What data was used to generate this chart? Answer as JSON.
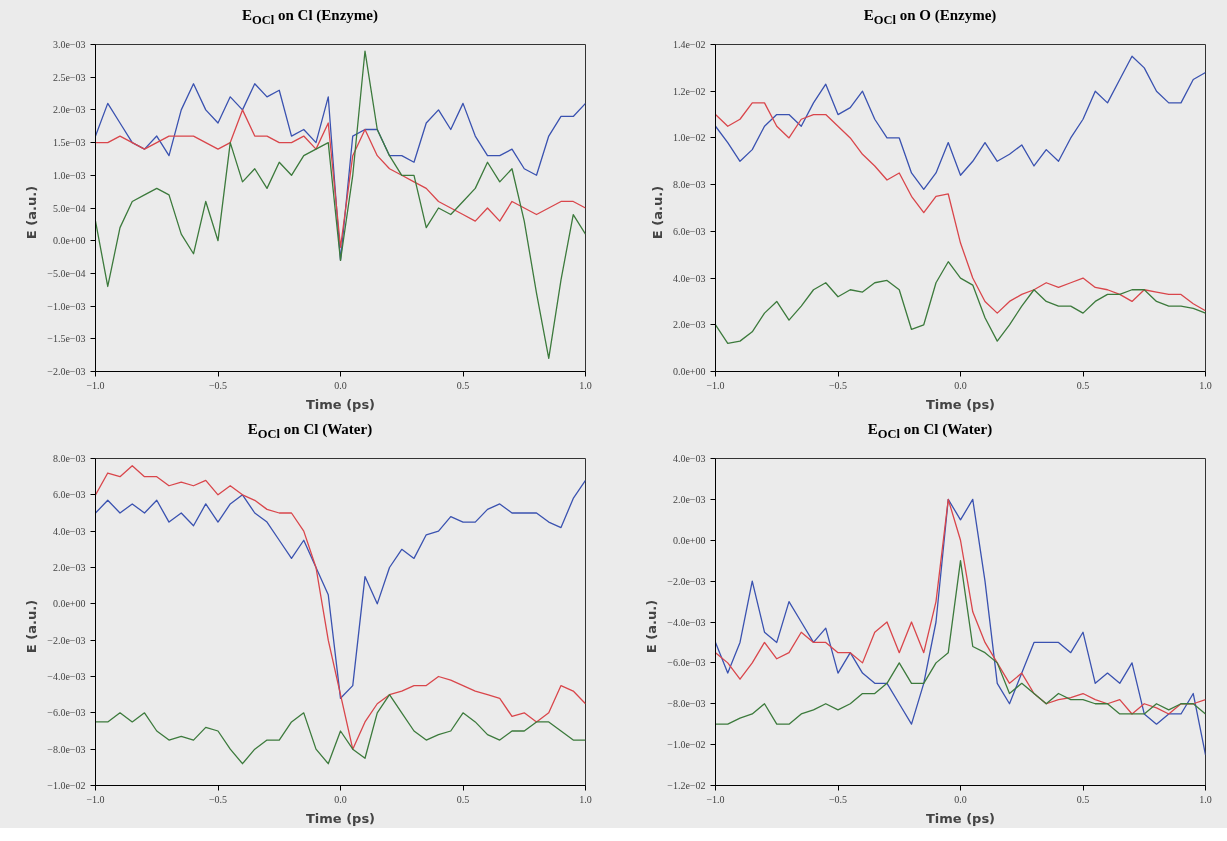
{
  "chart_data": [
    {
      "type": "line",
      "title": "E$_{OCl}$ on Cl (Enzyme)",
      "xlabel": "Time (ps)",
      "ylabel": "E   (a.u.)",
      "grid": false,
      "x": [
        -1.0,
        -0.95,
        -0.9,
        -0.85,
        -0.8,
        -0.75,
        -0.7,
        -0.65,
        -0.6,
        -0.55,
        -0.5,
        -0.45,
        -0.4,
        -0.35,
        -0.3,
        -0.25,
        -0.2,
        -0.15,
        -0.1,
        -0.05,
        0.0,
        0.05,
        0.1,
        0.15,
        0.2,
        0.25,
        0.3,
        0.35,
        0.4,
        0.45,
        0.5,
        0.55,
        0.6,
        0.65,
        0.7,
        0.75,
        0.8,
        0.85,
        0.9,
        0.95,
        1.0
      ],
      "xlim": [
        -1.0,
        1.0
      ],
      "xticks": [
        {
          "value": -1.0,
          "label": "−1.0"
        },
        {
          "value": -0.5,
          "label": "−0.5"
        },
        {
          "value": 0,
          "label": "0.0"
        },
        {
          "value": 0.5,
          "label": "0.5"
        },
        {
          "value": 1.0,
          "label": "1.0"
        }
      ],
      "ylim": [
        -0.002,
        0.003
      ],
      "yticks": [
        {
          "value": -0.002,
          "label": "−2.0e−03"
        },
        {
          "value": -0.0015,
          "label": "−1.5e−03"
        },
        {
          "value": -0.001,
          "label": "−1.0e−03"
        },
        {
          "value": -0.0005,
          "label": "−5.0e−04"
        },
        {
          "value": 0,
          "label": "0.0e+00"
        },
        {
          "value": 0.0005,
          "label": "5.0e−04"
        },
        {
          "value": 0.001,
          "label": "1.0e−03"
        },
        {
          "value": 0.0015,
          "label": "1.5e−03"
        },
        {
          "value": 0.002,
          "label": "2.0e−03"
        },
        {
          "value": 0.0025,
          "label": "2.5e−03"
        },
        {
          "value": 0.003,
          "label": "3.0e−03"
        }
      ],
      "series": [
        {
          "color": "#3a52b0",
          "values": [
            0.0016,
            0.0021,
            0.0018,
            0.0015,
            0.0014,
            0.0016,
            0.0013,
            0.002,
            0.0024,
            0.002,
            0.0018,
            0.0022,
            0.002,
            0.0024,
            0.0022,
            0.0023,
            0.0016,
            0.0017,
            0.0015,
            0.0022,
            -0.0003,
            0.0016,
            0.0017,
            0.0017,
            0.0013,
            0.0013,
            0.0012,
            0.0018,
            0.002,
            0.0017,
            0.0021,
            0.0016,
            0.0013,
            0.0013,
            0.0014,
            0.0011,
            0.001,
            0.0016,
            0.0019,
            0.0019,
            0.0021
          ]
        },
        {
          "color": "#d9464b",
          "values": [
            0.0015,
            0.0015,
            0.0016,
            0.0015,
            0.0014,
            0.0015,
            0.0016,
            0.0016,
            0.0016,
            0.0015,
            0.0014,
            0.0015,
            0.002,
            0.0016,
            0.0016,
            0.0015,
            0.0015,
            0.0016,
            0.0014,
            0.0018,
            -0.0001,
            0.0013,
            0.0017,
            0.0013,
            0.0011,
            0.001,
            0.0009,
            0.0008,
            0.0006,
            0.0005,
            0.0004,
            0.0003,
            0.0005,
            0.0003,
            0.0006,
            0.0005,
            0.0004,
            0.0005,
            0.0006,
            0.0006,
            0.0005
          ]
        },
        {
          "color": "#3c7a3c",
          "values": [
            0.0003,
            -0.0007,
            0.0002,
            0.0006,
            0.0007,
            0.0008,
            0.0007,
            0.0001,
            -0.0002,
            0.0006,
            0.0,
            0.0015,
            0.0009,
            0.0011,
            0.0008,
            0.0012,
            0.001,
            0.0013,
            0.0014,
            0.0015,
            -0.0003,
            0.001,
            0.0029,
            0.0017,
            0.0013,
            0.001,
            0.001,
            0.0002,
            0.0005,
            0.0004,
            0.0006,
            0.0008,
            0.0012,
            0.0009,
            0.0011,
            0.0003,
            -0.0008,
            -0.0018,
            -0.0006,
            0.0004,
            0.0001
          ]
        }
      ]
    },
    {
      "type": "line",
      "title": "E$_{OCl}$ on O (Enzyme)",
      "xlabel": "Time (ps)",
      "ylabel": "E   (a.u.)",
      "grid": false,
      "x": [
        -1.0,
        -0.95,
        -0.9,
        -0.85,
        -0.8,
        -0.75,
        -0.7,
        -0.65,
        -0.6,
        -0.55,
        -0.5,
        -0.45,
        -0.4,
        -0.35,
        -0.3,
        -0.25,
        -0.2,
        -0.15,
        -0.1,
        -0.05,
        0.0,
        0.05,
        0.1,
        0.15,
        0.2,
        0.25,
        0.3,
        0.35,
        0.4,
        0.45,
        0.5,
        0.55,
        0.6,
        0.65,
        0.7,
        0.75,
        0.8,
        0.85,
        0.9,
        0.95,
        1.0
      ],
      "xlim": [
        -1.0,
        1.0
      ],
      "xticks": [
        {
          "value": -1.0,
          "label": "−1.0"
        },
        {
          "value": -0.5,
          "label": "−0.5"
        },
        {
          "value": 0,
          "label": "0.0"
        },
        {
          "value": 0.5,
          "label": "0.5"
        },
        {
          "value": 1.0,
          "label": "1.0"
        }
      ],
      "ylim": [
        0,
        0.014
      ],
      "yticks": [
        {
          "value": 0,
          "label": "0.0e+00"
        },
        {
          "value": 0.002,
          "label": "2.0e−03"
        },
        {
          "value": 0.004,
          "label": "4.0e−03"
        },
        {
          "value": 0.006,
          "label": "6.0e−03"
        },
        {
          "value": 0.008,
          "label": "8.0e−03"
        },
        {
          "value": 0.01,
          "label": "1.0e−02"
        },
        {
          "value": 0.012,
          "label": "1.2e−02"
        },
        {
          "value": 0.014,
          "label": "1.4e−02"
        }
      ],
      "series": [
        {
          "color": "#3a52b0",
          "values": [
            0.0105,
            0.0098,
            0.009,
            0.0095,
            0.0105,
            0.011,
            0.011,
            0.0105,
            0.0115,
            0.0123,
            0.011,
            0.0113,
            0.012,
            0.0108,
            0.01,
            0.01,
            0.0085,
            0.0078,
            0.0085,
            0.0098,
            0.0084,
            0.009,
            0.0098,
            0.009,
            0.0093,
            0.0097,
            0.0088,
            0.0095,
            0.009,
            0.01,
            0.0108,
            0.012,
            0.0115,
            0.0125,
            0.0135,
            0.013,
            0.012,
            0.0115,
            0.0115,
            0.0125,
            0.0128
          ]
        },
        {
          "color": "#d9464b",
          "values": [
            0.011,
            0.0105,
            0.0108,
            0.0115,
            0.0115,
            0.0105,
            0.01,
            0.0108,
            0.011,
            0.011,
            0.0105,
            0.01,
            0.0093,
            0.0088,
            0.0082,
            0.0085,
            0.0075,
            0.0068,
            0.0075,
            0.0076,
            0.0055,
            0.004,
            0.003,
            0.0025,
            0.003,
            0.0033,
            0.0035,
            0.0038,
            0.0036,
            0.0038,
            0.004,
            0.0036,
            0.0035,
            0.0033,
            0.003,
            0.0035,
            0.0034,
            0.0033,
            0.0033,
            0.0029,
            0.0026
          ]
        },
        {
          "color": "#3c7a3c",
          "values": [
            0.002,
            0.0012,
            0.0013,
            0.0017,
            0.0025,
            0.003,
            0.0022,
            0.0028,
            0.0035,
            0.0038,
            0.0032,
            0.0035,
            0.0034,
            0.0038,
            0.0039,
            0.0035,
            0.0018,
            0.002,
            0.0038,
            0.0047,
            0.004,
            0.0037,
            0.0023,
            0.0013,
            0.002,
            0.0028,
            0.0035,
            0.003,
            0.0028,
            0.0028,
            0.0025,
            0.003,
            0.0033,
            0.0033,
            0.0035,
            0.0035,
            0.003,
            0.0028,
            0.0028,
            0.0027,
            0.0025
          ]
        }
      ]
    },
    {
      "type": "line",
      "title": "E$_{OCl}$ on Cl (Water)",
      "xlabel": "Time (ps)",
      "ylabel": "E   (a.u.)",
      "grid": false,
      "x": [
        -1.0,
        -0.95,
        -0.9,
        -0.85,
        -0.8,
        -0.75,
        -0.7,
        -0.65,
        -0.6,
        -0.55,
        -0.5,
        -0.45,
        -0.4,
        -0.35,
        -0.3,
        -0.25,
        -0.2,
        -0.15,
        -0.1,
        -0.05,
        0.0,
        0.05,
        0.1,
        0.15,
        0.2,
        0.25,
        0.3,
        0.35,
        0.4,
        0.45,
        0.5,
        0.55,
        0.6,
        0.65,
        0.7,
        0.75,
        0.8,
        0.85,
        0.9,
        0.95,
        1.0
      ],
      "xlim": [
        -1.0,
        1.0
      ],
      "xticks": [
        {
          "value": -1.0,
          "label": "−1.0"
        },
        {
          "value": -0.5,
          "label": "−0.5"
        },
        {
          "value": 0,
          "label": "0.0"
        },
        {
          "value": 0.5,
          "label": "0.5"
        },
        {
          "value": 1.0,
          "label": "1.0"
        }
      ],
      "ylim": [
        -0.01,
        0.008
      ],
      "yticks": [
        {
          "value": -0.01,
          "label": "−1.0e−02"
        },
        {
          "value": -0.008,
          "label": "−8.0e−03"
        },
        {
          "value": -0.006,
          "label": "−6.0e−03"
        },
        {
          "value": -0.004,
          "label": "−4.0e−03"
        },
        {
          "value": -0.002,
          "label": "−2.0e−03"
        },
        {
          "value": 0,
          "label": "0.0e+00"
        },
        {
          "value": 0.002,
          "label": "2.0e−03"
        },
        {
          "value": 0.004,
          "label": "4.0e−03"
        },
        {
          "value": 0.006,
          "label": "6.0e−03"
        },
        {
          "value": 0.008,
          "label": "8.0e−03"
        }
      ],
      "series": [
        {
          "color": "#3a52b0",
          "values": [
            0.005,
            0.0057,
            0.005,
            0.0055,
            0.005,
            0.0057,
            0.0045,
            0.005,
            0.0043,
            0.0055,
            0.0045,
            0.0055,
            0.006,
            0.005,
            0.0045,
            0.0035,
            0.0025,
            0.0035,
            0.002,
            0.0005,
            -0.0052,
            -0.0045,
            0.0015,
            0.0,
            0.002,
            0.003,
            0.0025,
            0.0038,
            0.004,
            0.0048,
            0.0045,
            0.0045,
            0.0052,
            0.0055,
            0.005,
            0.005,
            0.005,
            0.0045,
            0.0042,
            0.0058,
            0.0068
          ]
        },
        {
          "color": "#d9464b",
          "values": [
            0.006,
            0.0072,
            0.007,
            0.0076,
            0.007,
            0.007,
            0.0065,
            0.0067,
            0.0065,
            0.0068,
            0.006,
            0.0065,
            0.006,
            0.0057,
            0.0052,
            0.005,
            0.005,
            0.004,
            0.002,
            -0.002,
            -0.005,
            -0.008,
            -0.0065,
            -0.0055,
            -0.005,
            -0.0048,
            -0.0045,
            -0.0045,
            -0.004,
            -0.0042,
            -0.0045,
            -0.0048,
            -0.005,
            -0.0052,
            -0.0062,
            -0.006,
            -0.0065,
            -0.006,
            -0.0045,
            -0.0048,
            -0.0055
          ]
        },
        {
          "color": "#3c7a3c",
          "values": [
            -0.0065,
            -0.0065,
            -0.006,
            -0.0065,
            -0.006,
            -0.007,
            -0.0075,
            -0.0073,
            -0.0075,
            -0.0068,
            -0.007,
            -0.008,
            -0.0088,
            -0.008,
            -0.0075,
            -0.0075,
            -0.0065,
            -0.006,
            -0.008,
            -0.0088,
            -0.007,
            -0.008,
            -0.0085,
            -0.006,
            -0.005,
            -0.006,
            -0.007,
            -0.0075,
            -0.0072,
            -0.007,
            -0.006,
            -0.0065,
            -0.0072,
            -0.0075,
            -0.007,
            -0.007,
            -0.0065,
            -0.0065,
            -0.007,
            -0.0075,
            -0.0075
          ]
        }
      ]
    },
    {
      "type": "line",
      "title": "E$_{OCl}$ on Cl (Water)",
      "xlabel": "Time (ps)",
      "ylabel": "E   (a.u.)",
      "grid": false,
      "x": [
        -1.0,
        -0.95,
        -0.9,
        -0.85,
        -0.8,
        -0.75,
        -0.7,
        -0.65,
        -0.6,
        -0.55,
        -0.5,
        -0.45,
        -0.4,
        -0.35,
        -0.3,
        -0.25,
        -0.2,
        -0.15,
        -0.1,
        -0.05,
        0.0,
        0.05,
        0.1,
        0.15,
        0.2,
        0.25,
        0.3,
        0.35,
        0.4,
        0.45,
        0.5,
        0.55,
        0.6,
        0.65,
        0.7,
        0.75,
        0.8,
        0.85,
        0.9,
        0.95,
        1.0
      ],
      "xlim": [
        -1.0,
        1.0
      ],
      "xticks": [
        {
          "value": -1.0,
          "label": "−1.0"
        },
        {
          "value": -0.5,
          "label": "−0.5"
        },
        {
          "value": 0,
          "label": "0.0"
        },
        {
          "value": 0.5,
          "label": "0.5"
        },
        {
          "value": 1.0,
          "label": "1.0"
        }
      ],
      "ylim": [
        -0.012,
        0.004
      ],
      "yticks": [
        {
          "value": -0.012,
          "label": "−1.2e−02"
        },
        {
          "value": -0.01,
          "label": "−1.0e−02"
        },
        {
          "value": -0.008,
          "label": "−8.0e−03"
        },
        {
          "value": -0.006,
          "label": "−6.0e−03"
        },
        {
          "value": -0.004,
          "label": "−4.0e−03"
        },
        {
          "value": -0.002,
          "label": "−2.0e−03"
        },
        {
          "value": 0,
          "label": "0.0e+00"
        },
        {
          "value": 0.002,
          "label": "2.0e−03"
        },
        {
          "value": 0.004,
          "label": "4.0e−03"
        }
      ],
      "series": [
        {
          "color": "#3a52b0",
          "values": [
            -0.005,
            -0.0065,
            -0.005,
            -0.002,
            -0.0045,
            -0.005,
            -0.003,
            -0.004,
            -0.005,
            -0.0043,
            -0.0065,
            -0.0055,
            -0.0065,
            -0.007,
            -0.007,
            -0.008,
            -0.009,
            -0.007,
            -0.004,
            0.002,
            0.001,
            0.002,
            -0.002,
            -0.007,
            -0.008,
            -0.0065,
            -0.005,
            -0.005,
            -0.005,
            -0.0055,
            -0.0045,
            -0.007,
            -0.0065,
            -0.007,
            -0.006,
            -0.0085,
            -0.009,
            -0.0085,
            -0.0085,
            -0.0075,
            -0.0105
          ]
        },
        {
          "color": "#d9464b",
          "values": [
            -0.0055,
            -0.006,
            -0.0068,
            -0.006,
            -0.005,
            -0.0058,
            -0.0055,
            -0.0045,
            -0.005,
            -0.005,
            -0.0055,
            -0.0055,
            -0.006,
            -0.0045,
            -0.004,
            -0.0055,
            -0.004,
            -0.0055,
            -0.003,
            0.002,
            0.0,
            -0.0035,
            -0.005,
            -0.006,
            -0.007,
            -0.0065,
            -0.0075,
            -0.008,
            -0.0078,
            -0.0077,
            -0.0075,
            -0.0078,
            -0.008,
            -0.0078,
            -0.0085,
            -0.008,
            -0.0082,
            -0.0085,
            -0.008,
            -0.008,
            -0.0078
          ]
        },
        {
          "color": "#3c7a3c",
          "values": [
            -0.009,
            -0.009,
            -0.0087,
            -0.0085,
            -0.008,
            -0.009,
            -0.009,
            -0.0085,
            -0.0083,
            -0.008,
            -0.0083,
            -0.008,
            -0.0075,
            -0.0075,
            -0.007,
            -0.006,
            -0.007,
            -0.007,
            -0.006,
            -0.0055,
            -0.001,
            -0.0052,
            -0.0055,
            -0.006,
            -0.0075,
            -0.007,
            -0.0075,
            -0.008,
            -0.0075,
            -0.0078,
            -0.0078,
            -0.008,
            -0.008,
            -0.0085,
            -0.0085,
            -0.0085,
            -0.008,
            -0.0083,
            -0.008,
            -0.008,
            -0.0085
          ]
        }
      ]
    }
  ]
}
